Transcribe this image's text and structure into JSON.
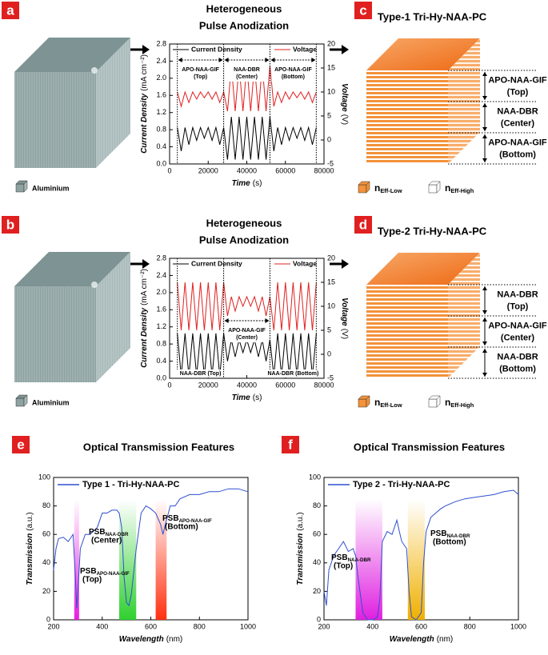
{
  "panel_labels": [
    "a",
    "b",
    "c",
    "d",
    "e",
    "f"
  ],
  "anodization_title": [
    "Heterogeneous",
    "Pulse Anodization"
  ],
  "substrate_legend": "Aluminium",
  "structures": [
    {
      "title": "Type-1 Tri-Hy-NAA-PC",
      "layers": [
        {
          "name": "APO-NAA-GIF",
          "detail": "(Top)"
        },
        {
          "name": "NAA-DBR",
          "detail": "(Center)"
        },
        {
          "name": "APO-NAA-GIF",
          "detail": "(Bottom)"
        }
      ]
    },
    {
      "title": "Type-2 Tri-Hy-NAA-PC",
      "layers": [
        {
          "name": "NAA-DBR",
          "detail": "(Top)"
        },
        {
          "name": "APO-NAA-GIF",
          "detail": "(Center)"
        },
        {
          "name": "NAA-DBR",
          "detail": "(Bottom)"
        }
      ]
    }
  ],
  "index_legend": [
    {
      "symbol": "n",
      "subscript": "Eff-Low",
      "color": "#f3923a"
    },
    {
      "symbol": "n",
      "subscript": "Eff-High",
      "color": "#ffffff"
    }
  ],
  "chart_data": [
    {
      "type": "line",
      "x": [
        4000,
        6000,
        8000,
        10000,
        12000,
        14000,
        16000,
        18000,
        20000,
        22000,
        24000,
        26000,
        28000,
        30000,
        32000,
        34000,
        36000,
        38000,
        40000,
        42000,
        44000,
        46000,
        48000,
        50000,
        52000,
        54000,
        56000,
        58000,
        60000,
        62000,
        64000,
        66000,
        68000,
        70000,
        72000,
        74000,
        76000
      ],
      "series": [
        {
          "name": "Current Density",
          "color": "#000000",
          "values": [
            0.85,
            0.3,
            0.85,
            0.45,
            0.85,
            0.55,
            0.85,
            0.6,
            0.85,
            0.55,
            0.85,
            0.45,
            0.85,
            0.1,
            1.1,
            0.1,
            1.1,
            0.1,
            1.1,
            0.1,
            1.1,
            0.1,
            1.1,
            0.1,
            1.1,
            0.3,
            0.85,
            0.45,
            0.85,
            0.55,
            0.85,
            0.6,
            0.85,
            0.55,
            0.85,
            0.45,
            0.85
          ]
        },
        {
          "name": "Voltage",
          "color": "#e02020",
          "axis": "y2",
          "values": [
            10,
            7,
            10,
            7.8,
            10,
            8.5,
            10,
            8.8,
            10,
            8.5,
            10,
            7.8,
            10,
            6,
            15.5,
            6,
            15.5,
            6,
            15.5,
            6,
            15.5,
            6,
            15.5,
            6,
            15.5,
            7,
            10,
            7.8,
            10,
            8.5,
            10,
            8.8,
            10,
            8.5,
            10,
            7.8,
            10
          ]
        }
      ],
      "xlabel": "Time",
      "xlabel_unit": "(s)",
      "ylabel": "Current Density",
      "ylabel_unit": "(mA cm⁻²)",
      "y2label": "Voltage",
      "y2label_unit": "(V)",
      "xlim": [
        0,
        80000
      ],
      "xticks": [
        0,
        20000,
        40000,
        60000,
        80000
      ],
      "ylim": [
        0,
        2.8
      ],
      "yticks": [
        {
          "value": 0,
          "label": "0.0"
        },
        0.4,
        0.8,
        1.2,
        1.6,
        {
          "value": 2,
          "label": "2.0"
        },
        2.4,
        2.8
      ],
      "y2lim": [
        -5,
        20
      ],
      "y2ticks": [
        -5,
        0,
        5,
        10,
        15,
        20
      ],
      "annotations": [
        {
          "text": "APO-NAA-GIF",
          "detail": "(Top)",
          "range": [
            4000,
            28000
          ]
        },
        {
          "text": "NAA-DBR",
          "detail": "(Center)",
          "range": [
            28000,
            52000
          ]
        },
        {
          "text": "APO-NAA-GIF",
          "detail": "(Bottom)",
          "range": [
            52000,
            76000
          ]
        }
      ]
    },
    {
      "type": "line",
      "x": [
        4000,
        6000,
        8000,
        10000,
        12000,
        14000,
        16000,
        18000,
        20000,
        22000,
        24000,
        26000,
        28000,
        30000,
        32000,
        34000,
        36000,
        38000,
        40000,
        42000,
        44000,
        46000,
        48000,
        50000,
        52000,
        54000,
        56000,
        58000,
        60000,
        62000,
        64000,
        66000,
        68000,
        70000,
        72000,
        74000,
        76000
      ],
      "series": [
        {
          "name": "Current Density",
          "color": "#000000",
          "values": [
            1.05,
            0.05,
            1.05,
            0.05,
            1.05,
            0.05,
            1.05,
            0.05,
            1.05,
            0.05,
            1.05,
            0.05,
            1.05,
            0.4,
            0.9,
            0.5,
            0.9,
            0.6,
            0.9,
            0.6,
            0.9,
            0.5,
            0.9,
            0.4,
            0.9,
            0.05,
            1.05,
            0.05,
            1.05,
            0.05,
            1.05,
            0.05,
            1.05,
            0.05,
            1.05,
            0.05,
            1.05
          ]
        },
        {
          "name": "Voltage",
          "color": "#e02020",
          "axis": "y2",
          "values": [
            15,
            5,
            15,
            5,
            15,
            5,
            15,
            5,
            15,
            5,
            15,
            5,
            15,
            8,
            12,
            9,
            12,
            10,
            12,
            10,
            12,
            9,
            12,
            8,
            12,
            5,
            15,
            5,
            15,
            5,
            15,
            5,
            15,
            5,
            15,
            5,
            15
          ]
        }
      ],
      "xlabel": "Time",
      "xlabel_unit": "(s)",
      "ylabel": "Current Density",
      "ylabel_unit": "(mA cm⁻²)",
      "y2label": "Voltage",
      "y2label_unit": "(V)",
      "xlim": [
        0,
        80000
      ],
      "xticks": [
        0,
        20000,
        40000,
        60000,
        80000
      ],
      "ylim": [
        0,
        2.8
      ],
      "yticks": [
        {
          "value": 0,
          "label": "0.0"
        },
        0.4,
        0.8,
        1.2,
        1.6,
        {
          "value": 2,
          "label": "2.0"
        },
        2.4,
        2.8
      ],
      "y2lim": [
        -5,
        20
      ],
      "y2ticks": [
        -5,
        0,
        5,
        10,
        15,
        20
      ],
      "annotations": [
        {
          "text": "NAA-DBR",
          "detail": "(Top)",
          "range": [
            4000,
            28000
          ]
        },
        {
          "text": "APO-NAA-GIF",
          "detail": "(Center)",
          "range": [
            28000,
            52000
          ]
        },
        {
          "text": "NAA-DBR",
          "detail": "(Bottom)",
          "range": [
            52000,
            76000
          ]
        }
      ]
    },
    {
      "type": "line",
      "title": "Optical Transmission Features",
      "x": [
        200,
        210,
        220,
        240,
        260,
        280,
        290,
        295,
        300,
        310,
        330,
        350,
        380,
        400,
        420,
        440,
        460,
        470,
        480,
        490,
        500,
        510,
        520,
        540,
        560,
        580,
        600,
        620,
        640,
        650,
        660,
        680,
        700,
        720,
        760,
        800,
        840,
        880,
        920,
        960,
        1000
      ],
      "series": [
        {
          "name": "Type 1 - Tri-Hy-NAA-PC",
          "color": "#2f4fd0",
          "values": [
            35,
            50,
            57,
            58,
            55,
            60,
            30,
            8,
            20,
            50,
            60,
            60,
            65,
            75,
            75,
            77,
            77,
            75,
            65,
            30,
            12,
            10,
            18,
            50,
            75,
            80,
            78,
            75,
            67,
            60,
            67,
            80,
            80,
            85,
            88,
            88,
            90,
            90,
            92,
            92,
            90
          ]
        }
      ],
      "xlabel": "Wavelength",
      "xlabel_unit": "(nm)",
      "ylabel": "Transmission",
      "ylabel_unit": "(a.u.)",
      "xlim": [
        200,
        1000
      ],
      "xticks": [
        200,
        400,
        600,
        800,
        1000
      ],
      "ylim": [
        0,
        100
      ],
      "yticks": [
        0,
        20,
        40,
        60,
        80,
        100
      ],
      "bands": [
        {
          "range": [
            285,
            305
          ],
          "color": "#e81ee0",
          "label": "PSB",
          "subscript": "APO-NAA-GIF",
          "detail": "(Top)"
        },
        {
          "range": [
            470,
            540
          ],
          "color": "#30d030",
          "label": "PSB",
          "subscript": "NAA-DBR",
          "detail": "(Center)"
        },
        {
          "range": [
            620,
            665
          ],
          "color": "#ff3010",
          "label": "PSB",
          "subscript": "APO-NAA-GIF",
          "detail": "(Bottom)"
        }
      ]
    },
    {
      "type": "line",
      "title": "Optical Transmission Features",
      "x": [
        200,
        210,
        220,
        240,
        260,
        280,
        300,
        320,
        330,
        340,
        360,
        380,
        400,
        420,
        430,
        440,
        460,
        480,
        500,
        510,
        520,
        540,
        550,
        560,
        580,
        600,
        610,
        620,
        640,
        660,
        680,
        700,
        740,
        780,
        820,
        860,
        900,
        940,
        980,
        1000
      ],
      "series": [
        {
          "name": "Type 2 - Tri-Hy-NAA-PC",
          "color": "#2f4fd0",
          "values": [
            20,
            10,
            35,
            45,
            50,
            55,
            48,
            50,
            45,
            30,
            5,
            0,
            0,
            2,
            15,
            55,
            62,
            60,
            70,
            62,
            55,
            50,
            20,
            2,
            0,
            5,
            40,
            62,
            72,
            75,
            78,
            80,
            83,
            85,
            86,
            87,
            88,
            90,
            91,
            88
          ]
        }
      ],
      "xlabel": "Wavelength",
      "xlabel_unit": "(nm)",
      "ylabel": "Transmission",
      "ylabel_unit": "(a.u.)",
      "xlim": [
        200,
        1000
      ],
      "xticks": [
        200,
        400,
        600,
        800,
        1000
      ],
      "ylim": [
        0,
        100
      ],
      "yticks": [
        0,
        20,
        40,
        60,
        80,
        100
      ],
      "bands": [
        {
          "range": [
            330,
            440
          ],
          "color": "#e020e0",
          "label": "PSB",
          "subscript": "NAA-DBR",
          "detail": "(Top)"
        },
        {
          "range": [
            545,
            615
          ],
          "color": "#f0b000",
          "label": "PSB",
          "subscript": "NAA-DBR",
          "detail": "(Bottom)"
        }
      ]
    }
  ]
}
